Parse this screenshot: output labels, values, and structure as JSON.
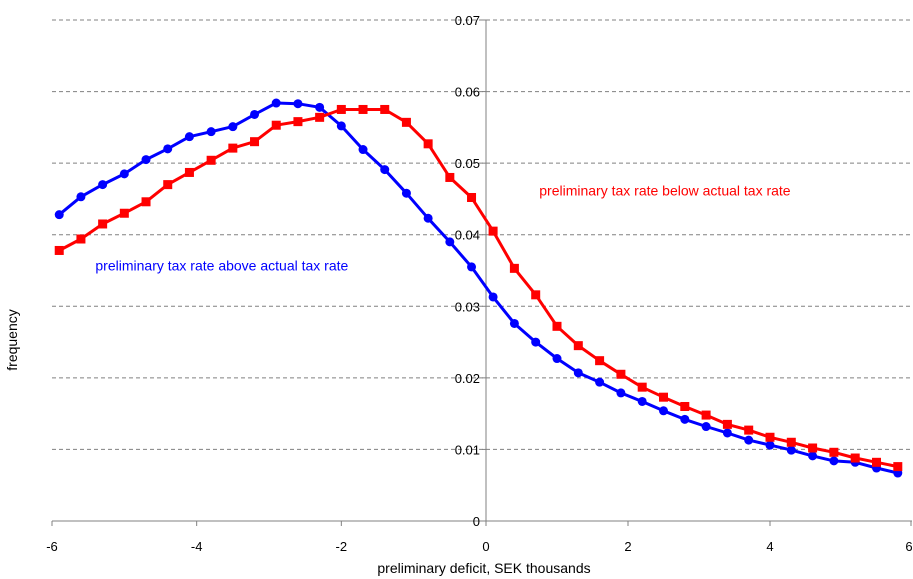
{
  "chart_data": {
    "type": "line",
    "xlabel": "preliminary deficit, SEK thousands",
    "ylabel": "frequency",
    "xlim": [
      -6,
      6
    ],
    "ylim": [
      0,
      0.07
    ],
    "x_ticks": [
      "-6",
      "-4",
      "-2",
      "0",
      "2",
      "4",
      "6"
    ],
    "x_tick_values": [
      -6,
      -4,
      -2,
      0,
      2,
      4,
      6
    ],
    "y_ticks": [
      "0",
      "0.01",
      "0.02",
      "0.03",
      "0.04",
      "0.05",
      "0.06",
      "0.07"
    ],
    "y_tick_values": [
      0,
      0.01,
      0.02,
      0.03,
      0.04,
      0.05,
      0.06,
      0.07
    ],
    "grid": "horizontal dashed",
    "series": [
      {
        "name": "preliminary tax rate above actual tax rate",
        "color": "#0000ff",
        "marker": "circle",
        "x": [
          -5.9,
          -5.6,
          -5.3,
          -5.0,
          -4.7,
          -4.4,
          -4.1,
          -3.8,
          -3.5,
          -3.2,
          -2.9,
          -2.6,
          -2.3,
          -2.0,
          -1.7,
          -1.4,
          -1.1,
          -0.8,
          -0.5,
          -0.2,
          0.1,
          0.4,
          0.7,
          1.0,
          1.3,
          1.6,
          1.9,
          2.2,
          2.5,
          2.8,
          3.1,
          3.4,
          3.7,
          4.0,
          4.3,
          4.6,
          4.9,
          5.2,
          5.5,
          5.8
        ],
        "y": [
          0.0428,
          0.0453,
          0.047,
          0.0485,
          0.0505,
          0.052,
          0.0537,
          0.0544,
          0.0551,
          0.0568,
          0.0584,
          0.0583,
          0.0578,
          0.0552,
          0.0519,
          0.0491,
          0.0458,
          0.0423,
          0.039,
          0.0355,
          0.0313,
          0.0276,
          0.025,
          0.0227,
          0.0207,
          0.0194,
          0.0179,
          0.0167,
          0.0154,
          0.0142,
          0.0132,
          0.0123,
          0.0113,
          0.0106,
          0.0099,
          0.0091,
          0.0084,
          0.0082,
          0.0074,
          0.0067
        ]
      },
      {
        "name": "preliminary tax rate below actual tax rate",
        "color": "#ff0000",
        "marker": "square",
        "x": [
          -5.9,
          -5.6,
          -5.3,
          -5.0,
          -4.7,
          -4.4,
          -4.1,
          -3.8,
          -3.5,
          -3.2,
          -2.9,
          -2.6,
          -2.3,
          -2.0,
          -1.7,
          -1.4,
          -1.1,
          -0.8,
          -0.5,
          -0.2,
          0.1,
          0.4,
          0.7,
          1.0,
          1.3,
          1.6,
          1.9,
          2.2,
          2.5,
          2.8,
          3.1,
          3.4,
          3.7,
          4.0,
          4.3,
          4.6,
          4.9,
          5.2,
          5.5,
          5.8
        ],
        "y": [
          0.0378,
          0.0394,
          0.0415,
          0.043,
          0.0446,
          0.047,
          0.0487,
          0.0504,
          0.0521,
          0.053,
          0.0553,
          0.0558,
          0.0564,
          0.0575,
          0.0575,
          0.0575,
          0.0557,
          0.0527,
          0.048,
          0.0452,
          0.0405,
          0.0353,
          0.0316,
          0.0272,
          0.0245,
          0.0224,
          0.0205,
          0.0187,
          0.0173,
          0.016,
          0.0148,
          0.0135,
          0.0127,
          0.0117,
          0.011,
          0.0102,
          0.0096,
          0.0088,
          0.0082,
          0.0076
        ]
      }
    ],
    "annotations": [
      {
        "text": "preliminary tax rate above actual tax rate",
        "color": "#0000ff",
        "x": -5.4,
        "y": 0.035
      },
      {
        "text": "preliminary tax rate below actual tax rate",
        "color": "#ff0000",
        "x": 0.75,
        "y": 0.0455
      }
    ]
  }
}
